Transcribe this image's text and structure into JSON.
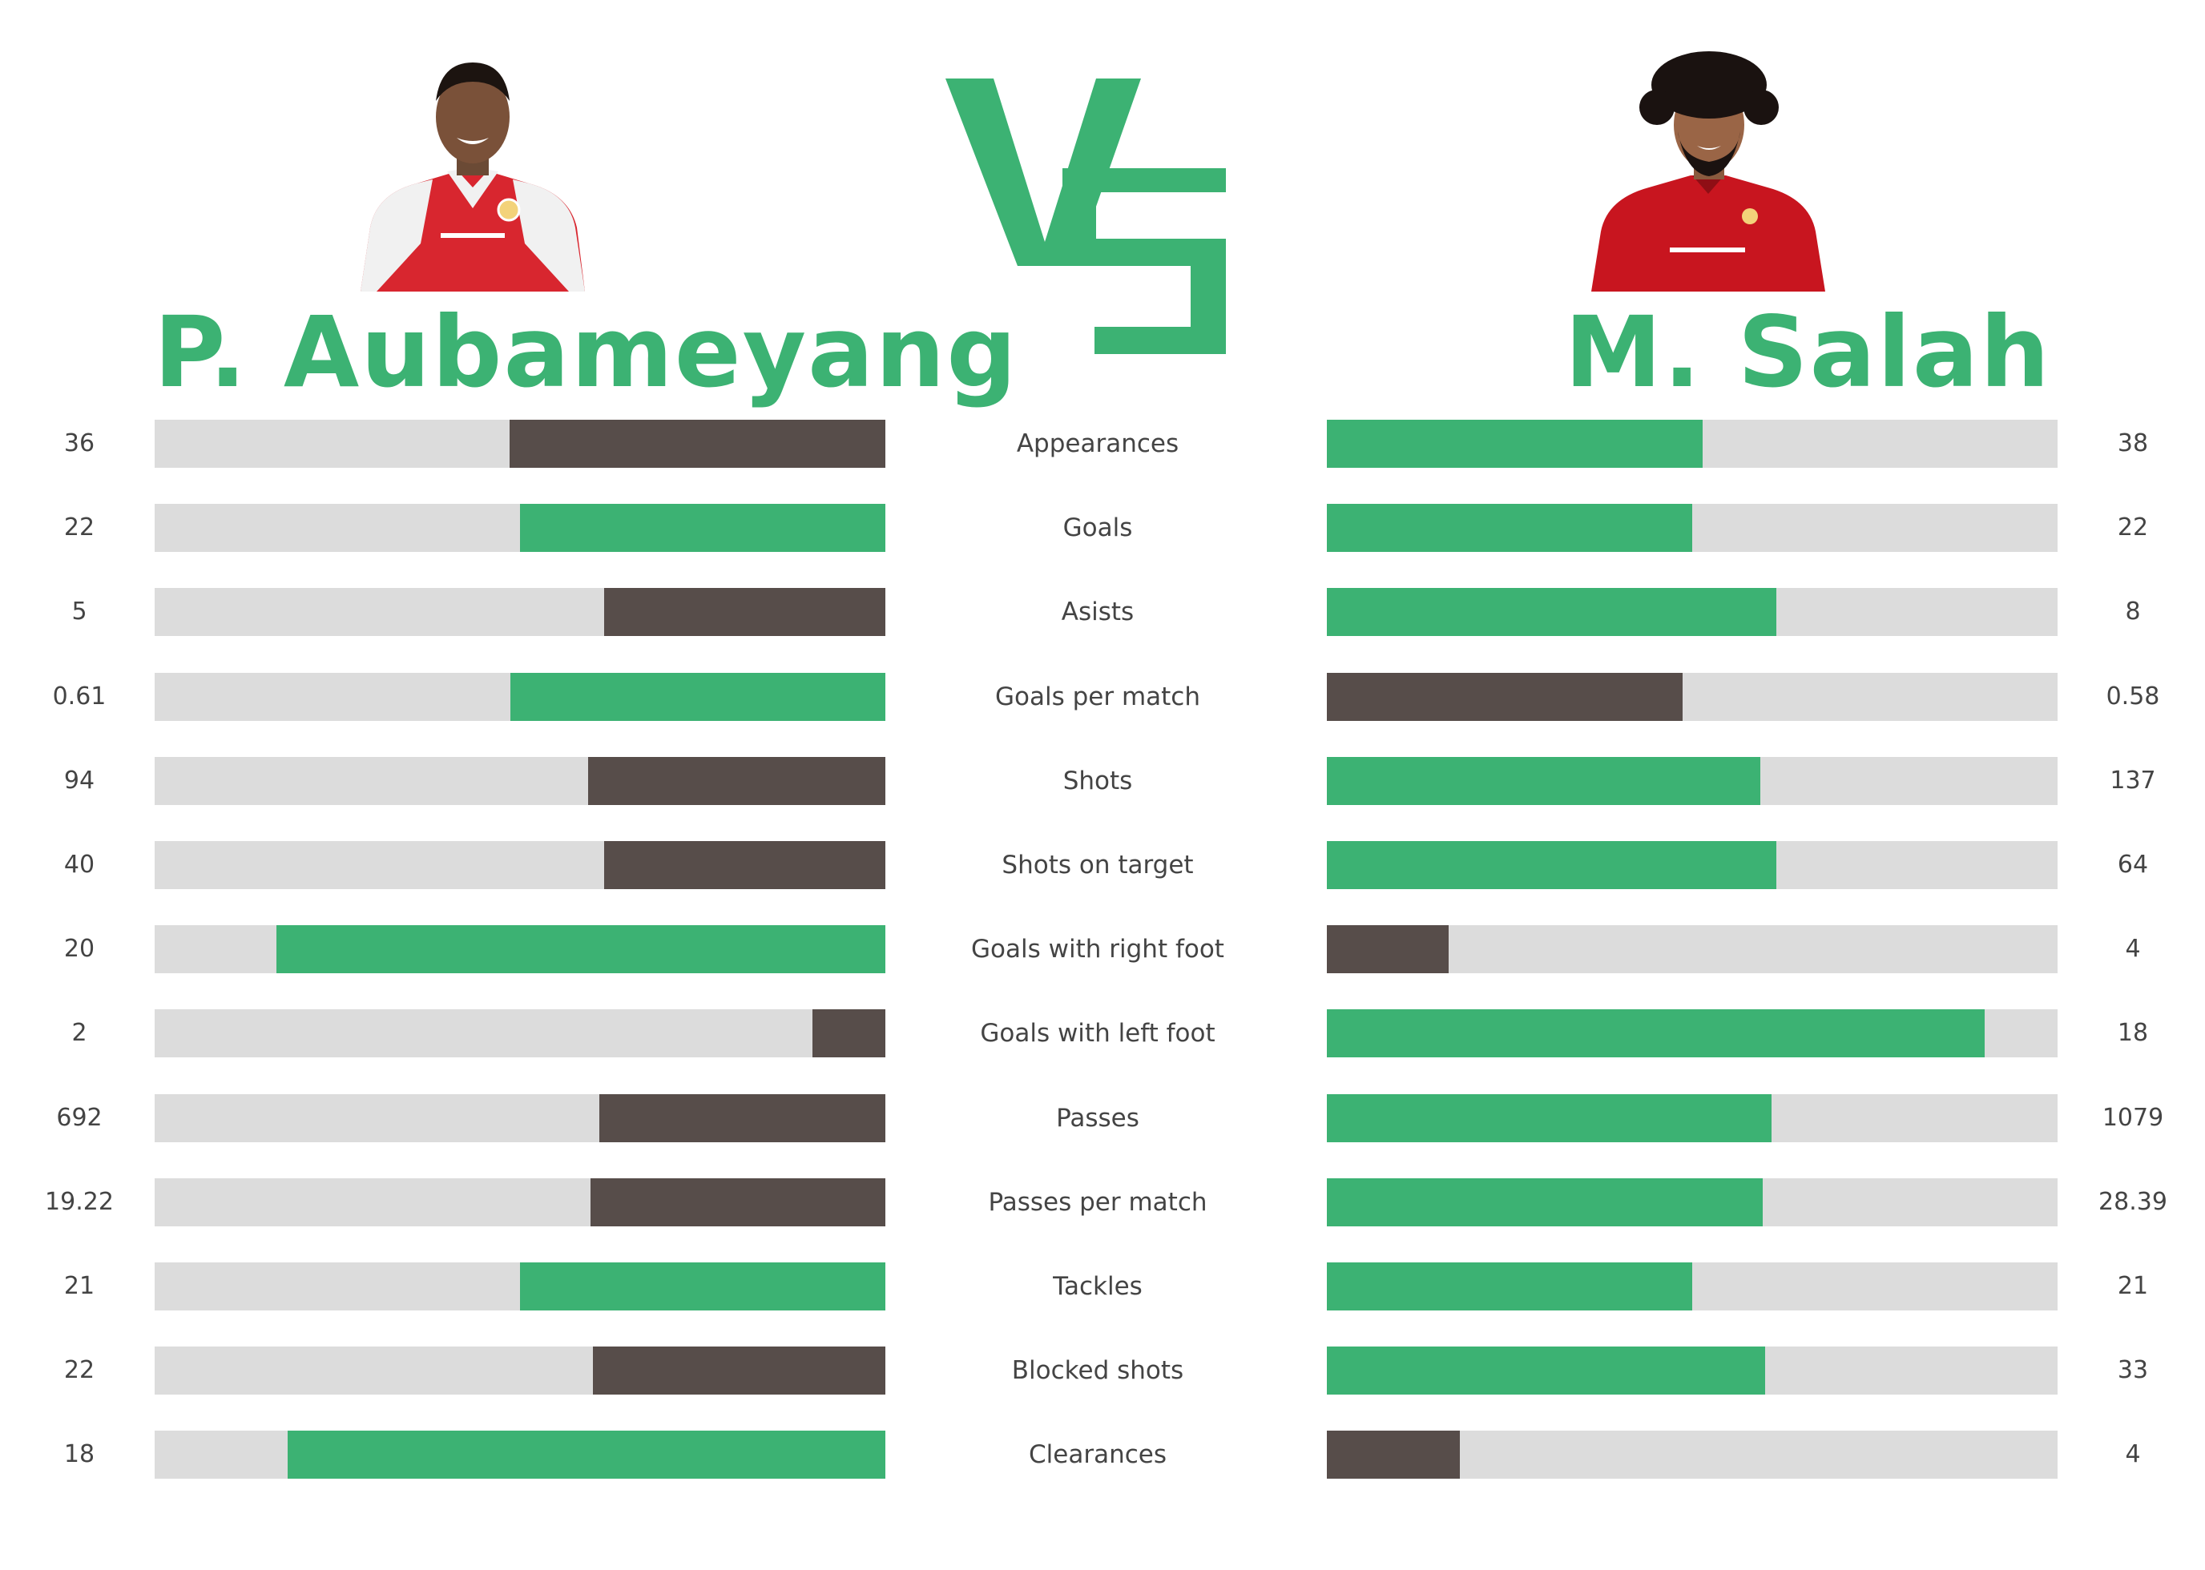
{
  "colors": {
    "accent": "#3cb273",
    "dark": "#574d4a",
    "track": "#dcdcdc"
  },
  "left_player": {
    "name": "P. Aubameyang"
  },
  "right_player": {
    "name": "M. Salah"
  },
  "vs_text": "VS",
  "chart_data": {
    "type": "bar",
    "title": "",
    "categories": [
      "Appearances",
      "Goals",
      "Asists",
      "Goals per match",
      "Shots",
      "Shots on target",
      "Goals with right foot",
      "Goals with left foot",
      "Passes",
      "Passes per match",
      "Tackles",
      "Blocked shots",
      "Clearances"
    ],
    "series": [
      {
        "name": "P. Aubameyang",
        "values": [
          36,
          22,
          5,
          0.61,
          94,
          40,
          20,
          2,
          692,
          19.22,
          21,
          22,
          18
        ],
        "labels": [
          "36",
          "22",
          "5",
          "0.61",
          "94",
          "40",
          "20",
          "2",
          "692",
          "19.22",
          "21",
          "22",
          "18"
        ],
        "fill_fraction": [
          0.514,
          0.5,
          0.385,
          0.513,
          0.407,
          0.385,
          0.833,
          0.1,
          0.391,
          0.404,
          0.5,
          0.4,
          0.818
        ],
        "highlight": [
          "dark",
          "green",
          "dark",
          "green",
          "dark",
          "dark",
          "green",
          "dark",
          "dark",
          "dark",
          "green",
          "dark",
          "green"
        ]
      },
      {
        "name": "M. Salah",
        "values": [
          38,
          22,
          8,
          0.58,
          137,
          64,
          4,
          18,
          1079,
          28.39,
          21,
          33,
          4
        ],
        "labels": [
          "38",
          "22",
          "8",
          "0.58",
          "137",
          "64",
          "4",
          "18",
          "1079",
          "28.39",
          "21",
          "33",
          "4"
        ],
        "fill_fraction": [
          0.514,
          0.5,
          0.615,
          0.487,
          0.593,
          0.615,
          0.167,
          0.9,
          0.609,
          0.596,
          0.5,
          0.6,
          0.182
        ],
        "highlight": [
          "green",
          "green",
          "green",
          "dark",
          "green",
          "green",
          "dark",
          "green",
          "green",
          "green",
          "green",
          "green",
          "dark"
        ]
      }
    ]
  }
}
